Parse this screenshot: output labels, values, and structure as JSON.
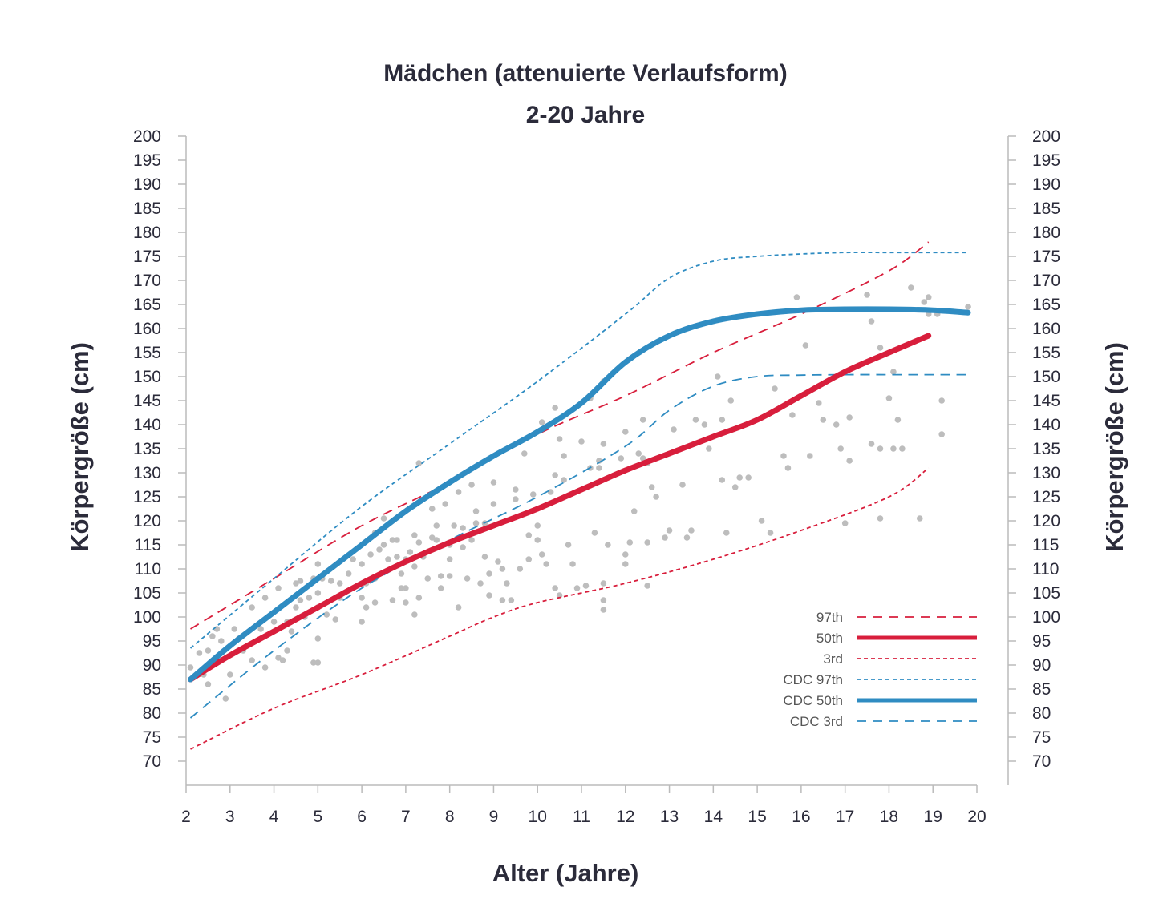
{
  "chart_data": {
    "type": "line",
    "title": "Mädchen (attenuierte Verlaufsform)",
    "subtitle": "2-20 Jahre",
    "xlabel": "Alter (Jahre)",
    "ylabel": "Körpergröße (cm)",
    "ylabel_right": "Körpergröße (cm)",
    "xlim": [
      2,
      20
    ],
    "ylim": [
      70,
      200
    ],
    "x_ticks": [
      2,
      3,
      4,
      5,
      6,
      7,
      8,
      9,
      10,
      11,
      12,
      13,
      14,
      15,
      16,
      17,
      18,
      19,
      20
    ],
    "y_ticks": [
      70,
      75,
      80,
      85,
      90,
      95,
      100,
      105,
      110,
      115,
      120,
      125,
      130,
      135,
      140,
      145,
      150,
      155,
      160,
      165,
      170,
      175,
      180,
      185,
      190,
      195,
      200
    ],
    "grid": false,
    "legend_position": "bottom-right",
    "colors": {
      "red": "#d81e3c",
      "blue": "#2f8cc2",
      "points": "#bdbdbd",
      "axis": "#bbbbbb"
    },
    "series": [
      {
        "name": "97th",
        "style": "dashed",
        "color": "#d81e3c",
        "x": [
          2.1,
          4,
          6,
          8,
          10,
          12,
          14,
          16,
          18,
          18.9
        ],
        "y": [
          97.5,
          108,
          119,
          128,
          138,
          146,
          155,
          163,
          172,
          178
        ]
      },
      {
        "name": "50th",
        "style": "solid",
        "color": "#d81e3c",
        "x": [
          2.1,
          3,
          4,
          5,
          6,
          7,
          8,
          9,
          10,
          11,
          12,
          13,
          14,
          15,
          16,
          17,
          18,
          18.9
        ],
        "y": [
          87,
          92,
          97,
          102,
          107,
          111.5,
          115.5,
          119,
          122.5,
          126.5,
          130.5,
          134,
          137.5,
          141,
          146,
          151,
          155,
          158.5
        ]
      },
      {
        "name": "3rd",
        "style": "dotted",
        "color": "#d81e3c",
        "x": [
          2.1,
          4,
          6,
          8,
          9,
          10,
          12,
          14,
          16,
          18,
          18.9
        ],
        "y": [
          72.5,
          81,
          88,
          96,
          100,
          103,
          107,
          112,
          118,
          125,
          131
        ]
      },
      {
        "name": "CDC 97th",
        "style": "dotted",
        "color": "#2f8cc2",
        "x": [
          2.1,
          4,
          6,
          8,
          10,
          12,
          13,
          14,
          15,
          16,
          17,
          18,
          19.8
        ],
        "y": [
          93.5,
          108,
          123,
          136,
          149,
          163,
          170.5,
          174,
          175,
          175.5,
          175.8,
          175.8,
          175.8
        ]
      },
      {
        "name": "CDC 50th",
        "style": "solid",
        "color": "#2f8cc2",
        "x": [
          2.1,
          3,
          4,
          5,
          6,
          7,
          8,
          9,
          10,
          11,
          12,
          13,
          14,
          15,
          16,
          17,
          18,
          19,
          19.8
        ],
        "y": [
          87,
          94,
          101,
          108,
          115,
          122,
          128,
          133.5,
          138.5,
          144.5,
          153,
          158.5,
          161.5,
          163,
          163.8,
          164,
          164,
          163.8,
          163.3
        ]
      },
      {
        "name": "CDC 3rd",
        "style": "dashed",
        "color": "#2f8cc2",
        "x": [
          2.1,
          4,
          6,
          8,
          10,
          12,
          13,
          14,
          15,
          16,
          17,
          18,
          19.8
        ],
        "y": [
          79,
          93,
          106,
          116,
          125,
          135.5,
          143,
          148,
          150,
          150.3,
          150.4,
          150.4,
          150.4
        ]
      }
    ],
    "scatter": {
      "color": "#bdbdbd",
      "points": [
        [
          2.1,
          89.5
        ],
        [
          2.3,
          92.5
        ],
        [
          2.4,
          88
        ],
        [
          2.5,
          86
        ],
        [
          2.5,
          93
        ],
        [
          2.6,
          96
        ],
        [
          2.7,
          97.5
        ],
        [
          2.8,
          95
        ],
        [
          2.9,
          83
        ],
        [
          3.0,
          88
        ],
        [
          3.1,
          97.5
        ],
        [
          3.2,
          95.5
        ],
        [
          3.3,
          93
        ],
        [
          3.5,
          91
        ],
        [
          3.5,
          102
        ],
        [
          3.7,
          97.5
        ],
        [
          3.8,
          89.5
        ],
        [
          3.8,
          104
        ],
        [
          4.0,
          99
        ],
        [
          4.1,
          91.5
        ],
        [
          4.1,
          106
        ],
        [
          4.2,
          91
        ],
        [
          4.3,
          93
        ],
        [
          4.3,
          99
        ],
        [
          4.4,
          97
        ],
        [
          4.5,
          102
        ],
        [
          4.5,
          107
        ],
        [
          4.6,
          103.5
        ],
        [
          4.6,
          107.5
        ],
        [
          4.7,
          100
        ],
        [
          4.8,
          104
        ],
        [
          4.9,
          108
        ],
        [
          4.9,
          90.5
        ],
        [
          5.0,
          95.5
        ],
        [
          5.0,
          90.5
        ],
        [
          5.0,
          105
        ],
        [
          5.0,
          111
        ],
        [
          5.0,
          102
        ],
        [
          5.1,
          108
        ],
        [
          5.2,
          100.5
        ],
        [
          5.3,
          107.5
        ],
        [
          5.4,
          99.5
        ],
        [
          5.5,
          107
        ],
        [
          5.5,
          104
        ],
        [
          5.7,
          109
        ],
        [
          5.8,
          112
        ],
        [
          6.0,
          99
        ],
        [
          6.0,
          104
        ],
        [
          6.0,
          111
        ],
        [
          6.1,
          102
        ],
        [
          6.1,
          107
        ],
        [
          6.2,
          113
        ],
        [
          6.3,
          117.5
        ],
        [
          6.3,
          103
        ],
        [
          6.3,
          108
        ],
        [
          6.4,
          114
        ],
        [
          6.5,
          120.5
        ],
        [
          6.5,
          115
        ],
        [
          6.6,
          112
        ],
        [
          6.7,
          116
        ],
        [
          6.7,
          103.5
        ],
        [
          6.8,
          116
        ],
        [
          6.8,
          112.5
        ],
        [
          6.9,
          109
        ],
        [
          6.9,
          106
        ],
        [
          7.0,
          112
        ],
        [
          7.0,
          106
        ],
        [
          7.0,
          103
        ],
        [
          7.1,
          113.5
        ],
        [
          7.2,
          110.5
        ],
        [
          7.2,
          100.5
        ],
        [
          7.2,
          117
        ],
        [
          7.3,
          115.5
        ],
        [
          7.3,
          104
        ],
        [
          7.3,
          132
        ],
        [
          7.4,
          112.5
        ],
        [
          7.5,
          108
        ],
        [
          7.6,
          116.5
        ],
        [
          7.6,
          122.5
        ],
        [
          7.7,
          119
        ],
        [
          7.7,
          116
        ],
        [
          7.8,
          108.5
        ],
        [
          7.8,
          106
        ],
        [
          7.9,
          123.5
        ],
        [
          8.0,
          115
        ],
        [
          8.0,
          108.5
        ],
        [
          8.0,
          112
        ],
        [
          8.1,
          119
        ],
        [
          8.2,
          102
        ],
        [
          8.2,
          126
        ],
        [
          8.3,
          114.5
        ],
        [
          8.3,
          118.5
        ],
        [
          8.4,
          108
        ],
        [
          8.5,
          127.5
        ],
        [
          8.5,
          116
        ],
        [
          8.6,
          119.5
        ],
        [
          8.6,
          122
        ],
        [
          8.7,
          107
        ],
        [
          8.8,
          112.5
        ],
        [
          8.8,
          119.5
        ],
        [
          8.9,
          104.5
        ],
        [
          8.9,
          109
        ],
        [
          9.0,
          123.5
        ],
        [
          9.0,
          128
        ],
        [
          9.1,
          111.5
        ],
        [
          9.2,
          110
        ],
        [
          9.2,
          103.5
        ],
        [
          9.3,
          107
        ],
        [
          9.4,
          103.5
        ],
        [
          9.5,
          124.5
        ],
        [
          9.5,
          126.5
        ],
        [
          9.6,
          110
        ],
        [
          9.7,
          134
        ],
        [
          9.8,
          117
        ],
        [
          9.8,
          112
        ],
        [
          9.9,
          125.5
        ],
        [
          10.0,
          119
        ],
        [
          10.0,
          116
        ],
        [
          10.1,
          140.5
        ],
        [
          10.1,
          113
        ],
        [
          10.2,
          111
        ],
        [
          10.3,
          126
        ],
        [
          10.4,
          129.5
        ],
        [
          10.4,
          143.5
        ],
        [
          10.4,
          106
        ],
        [
          10.5,
          104.5
        ],
        [
          10.5,
          137
        ],
        [
          10.6,
          128.5
        ],
        [
          10.6,
          133.5
        ],
        [
          10.7,
          115
        ],
        [
          10.8,
          111
        ],
        [
          10.9,
          106
        ],
        [
          11.0,
          136.5
        ],
        [
          11.1,
          106.5
        ],
        [
          11.2,
          131
        ],
        [
          11.2,
          145.5
        ],
        [
          11.3,
          117.5
        ],
        [
          11.4,
          131
        ],
        [
          11.4,
          132.5
        ],
        [
          11.5,
          103.5
        ],
        [
          11.5,
          101.5
        ],
        [
          11.5,
          107
        ],
        [
          11.5,
          136
        ],
        [
          11.5,
          149
        ],
        [
          11.6,
          115
        ],
        [
          11.9,
          133
        ],
        [
          12.0,
          113
        ],
        [
          12.0,
          111
        ],
        [
          12.0,
          138.5
        ],
        [
          12.1,
          115.5
        ],
        [
          12.2,
          122
        ],
        [
          12.3,
          134
        ],
        [
          12.4,
          141
        ],
        [
          12.4,
          133
        ],
        [
          12.5,
          132
        ],
        [
          12.5,
          106.5
        ],
        [
          12.5,
          115.5
        ],
        [
          12.6,
          127
        ],
        [
          12.7,
          125
        ],
        [
          12.9,
          116.5
        ],
        [
          13.0,
          118
        ],
        [
          13.1,
          139
        ],
        [
          13.3,
          127.5
        ],
        [
          13.4,
          116.5
        ],
        [
          13.5,
          118
        ],
        [
          13.6,
          141
        ],
        [
          13.8,
          140
        ],
        [
          13.9,
          135
        ],
        [
          14.1,
          150
        ],
        [
          14.2,
          128.5
        ],
        [
          14.2,
          141
        ],
        [
          14.3,
          117.5
        ],
        [
          14.4,
          145
        ],
        [
          14.5,
          127
        ],
        [
          14.6,
          129
        ],
        [
          14.8,
          129
        ],
        [
          15.1,
          120
        ],
        [
          15.3,
          117.5
        ],
        [
          15.4,
          147.5
        ],
        [
          15.6,
          133.5
        ],
        [
          15.7,
          131
        ],
        [
          15.8,
          142
        ],
        [
          15.9,
          166.5
        ],
        [
          16.1,
          156.5
        ],
        [
          16.2,
          133.5
        ],
        [
          16.4,
          144.5
        ],
        [
          16.5,
          141
        ],
        [
          16.8,
          140
        ],
        [
          16.9,
          135
        ],
        [
          17.0,
          119.5
        ],
        [
          17.1,
          132.5
        ],
        [
          17.1,
          141.5
        ],
        [
          17.5,
          167
        ],
        [
          17.6,
          161.5
        ],
        [
          17.6,
          136
        ],
        [
          17.8,
          135
        ],
        [
          17.8,
          156
        ],
        [
          17.8,
          120.5
        ],
        [
          18.0,
          145.5
        ],
        [
          18.1,
          151
        ],
        [
          18.1,
          135
        ],
        [
          18.2,
          141
        ],
        [
          18.3,
          135
        ],
        [
          18.5,
          168.5
        ],
        [
          18.7,
          120.5
        ],
        [
          18.8,
          165.5
        ],
        [
          18.9,
          163
        ],
        [
          18.9,
          166.5
        ],
        [
          19.1,
          163
        ],
        [
          19.2,
          145
        ],
        [
          19.2,
          138
        ],
        [
          19.8,
          164.5
        ]
      ]
    }
  }
}
